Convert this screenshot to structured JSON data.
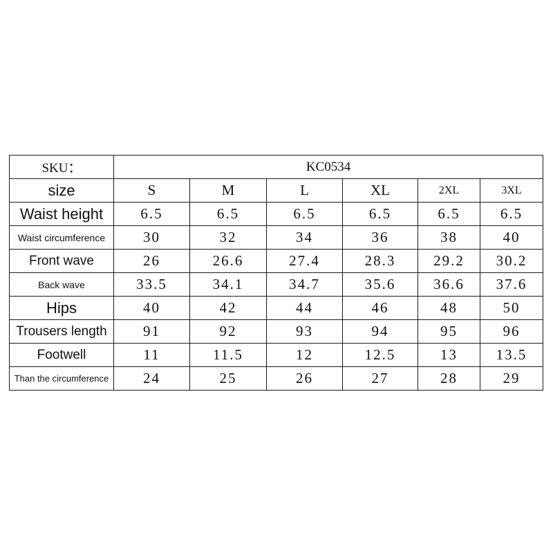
{
  "sku": {
    "label": "SKU：",
    "value": "KC0534"
  },
  "size_header": {
    "label": "size",
    "sizes": [
      "S",
      "M",
      "L",
      "XL",
      "2XL",
      "3XL"
    ]
  },
  "rows": [
    {
      "label": "Waist height",
      "values": [
        "6.5",
        "6.5",
        "6.5",
        "6.5",
        "6.5",
        "6.5"
      ]
    },
    {
      "label": "Waist circumference",
      "values": [
        "30",
        "32",
        "34",
        "36",
        "38",
        "40"
      ]
    },
    {
      "label": "Front wave",
      "values": [
        "26",
        "26.6",
        "27.4",
        "28.3",
        "29.2",
        "30.2"
      ]
    },
    {
      "label": "Back wave",
      "values": [
        "33.5",
        "34.1",
        "34.7",
        "35.6",
        "36.6",
        "37.6"
      ]
    },
    {
      "label": "Hips",
      "values": [
        "40",
        "42",
        "44",
        "46",
        "48",
        "50"
      ]
    },
    {
      "label": "Trousers length",
      "values": [
        "91",
        "92",
        "93",
        "94",
        "95",
        "96"
      ]
    },
    {
      "label": "Footwell",
      "values": [
        "11",
        "11.5",
        "12",
        "12.5",
        "13",
        "13.5"
      ]
    },
    {
      "label": "Than the circumference",
      "values": [
        "24",
        "25",
        "26",
        "27",
        "28",
        "29"
      ]
    }
  ]
}
